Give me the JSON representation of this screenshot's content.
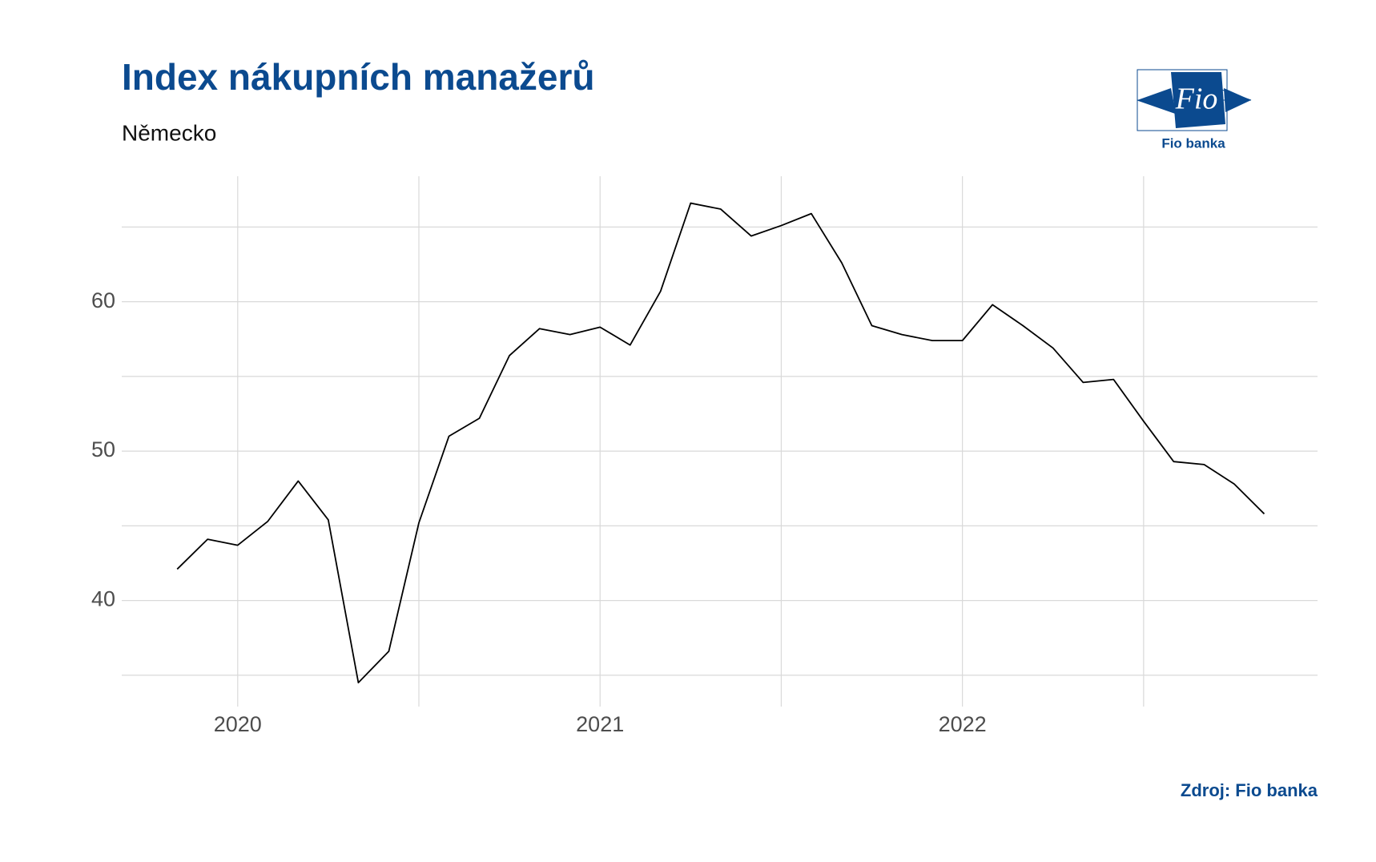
{
  "chart_data": {
    "type": "line",
    "title": "Index nákupních manažerů",
    "subtitle": "Německo",
    "source": "Zdroj: Fio banka",
    "logo": {
      "mark": "Fio",
      "name": "Fio banka"
    },
    "x": [
      2019.833,
      2019.917,
      2020,
      2020.083,
      2020.167,
      2020.25,
      2020.333,
      2020.417,
      2020.5,
      2020.583,
      2020.667,
      2020.75,
      2020.833,
      2020.917,
      2021,
      2021.083,
      2021.167,
      2021.25,
      2021.333,
      2021.417,
      2021.5,
      2021.583,
      2021.667,
      2021.75,
      2021.833,
      2021.917,
      2022,
      2022.083,
      2022.167,
      2022.25,
      2022.333,
      2022.417,
      2022.5,
      2022.583,
      2022.667,
      2022.75,
      2022.833
    ],
    "values": [
      42.1,
      44.1,
      43.7,
      45.3,
      48.0,
      45.4,
      34.5,
      36.6,
      45.2,
      51.0,
      52.2,
      56.4,
      58.2,
      57.8,
      58.3,
      57.1,
      60.7,
      66.6,
      66.2,
      64.4,
      65.1,
      65.9,
      62.6,
      58.4,
      57.8,
      57.4,
      57.4,
      59.8,
      58.4,
      56.9,
      54.6,
      54.8,
      52.0,
      49.3,
      49.1,
      47.8,
      45.8
    ],
    "color": "#000000",
    "xlim": [
      2019.68,
      2022.98
    ],
    "ylim": [
      32.9,
      68.4
    ],
    "xticks": [
      2020,
      2021,
      2022
    ],
    "yticks": [
      40,
      50,
      60
    ],
    "x_minor_grid": [
      2020.5,
      2021.5,
      2022.5
    ],
    "y_minor_grid": [
      35,
      45,
      55,
      65
    ],
    "grid": true
  }
}
